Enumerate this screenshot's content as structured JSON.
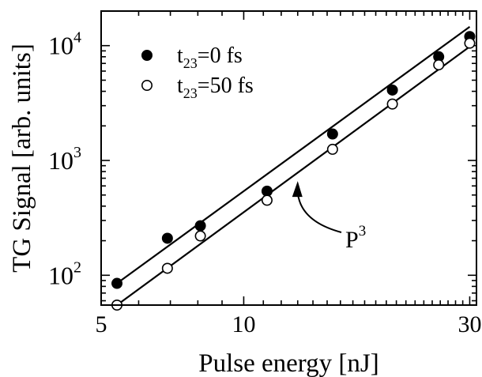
{
  "chart_data": {
    "type": "scatter",
    "xlabel": "Pulse energy [nJ]",
    "ylabel": "TG Signal [arb. units]",
    "x_scale": "log",
    "y_scale": "log",
    "xlim": [
      5,
      31
    ],
    "ylim": [
      55,
      20000
    ],
    "x_ticks": [
      {
        "value": 5,
        "label": "5"
      },
      {
        "value": 10,
        "label": "10"
      },
      {
        "value": 30,
        "label": "30"
      }
    ],
    "y_ticks": [
      {
        "value": 100,
        "base": "10",
        "exp": "2"
      },
      {
        "value": 1000,
        "base": "10",
        "exp": "3"
      },
      {
        "value": 10000,
        "base": "10",
        "exp": "4"
      }
    ],
    "series": [
      {
        "name": "t23=0 fs",
        "label_main": "t",
        "label_sub": "23",
        "label_rest": "=0 fs",
        "marker": "filled-circle",
        "x": [
          5.4,
          6.9,
          8.1,
          11.2,
          15.4,
          20.6,
          25.8,
          30.0
        ],
        "y": [
          85,
          210,
          270,
          540,
          1700,
          4100,
          8000,
          12000
        ]
      },
      {
        "name": "t23=50 fs",
        "label_main": "t",
        "label_sub": "23",
        "label_rest": "=50 fs",
        "marker": "open-circle",
        "x": [
          5.4,
          6.9,
          8.1,
          11.2,
          15.4,
          20.6,
          25.8,
          30.0
        ],
        "y": [
          55,
          115,
          220,
          450,
          1250,
          3100,
          6800,
          10500
        ]
      }
    ],
    "fit_lines": [
      {
        "x": [
          5.4,
          30.0
        ],
        "y": [
          85,
          14600
        ]
      },
      {
        "x": [
          5.4,
          30.0
        ],
        "y": [
          55,
          9800
        ]
      }
    ],
    "annotation": {
      "text": "P",
      "sup": "3",
      "arrow_to": {
        "x": 13.0,
        "y": 640
      }
    },
    "legend": "top-left",
    "grid": false
  }
}
